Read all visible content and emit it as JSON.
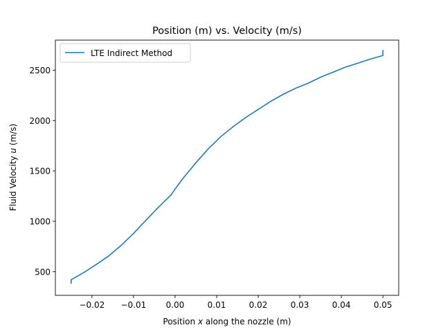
{
  "chart_data": {
    "type": "line",
    "title": "Position (m) vs. Velocity (m/s)",
    "xlabel_parts": [
      "Position ",
      "x",
      " along the nozzle (m)"
    ],
    "ylabel_parts": [
      "Fluid Velocity ",
      "u",
      " (m/s)"
    ],
    "xlim": [
      -0.0288,
      0.0538
    ],
    "ylim": [
      265,
      2798
    ],
    "xticks": [
      -0.02,
      -0.01,
      0.0,
      0.01,
      0.02,
      0.03,
      0.04,
      0.05
    ],
    "xtick_labels": [
      "−0.02",
      "−0.01",
      "0.00",
      "0.01",
      "0.02",
      "0.03",
      "0.04",
      "0.05"
    ],
    "yticks": [
      500,
      1000,
      1500,
      2000,
      2500
    ],
    "ytick_labels": [
      "500",
      "1000",
      "1500",
      "2000",
      "2500"
    ],
    "grid": false,
    "legend_position": "top-left",
    "series": [
      {
        "name": "LTE Indirect Method",
        "color": "#1f77b4",
        "x": [
          -0.025,
          -0.025,
          -0.025,
          -0.022,
          -0.019,
          -0.016,
          -0.013,
          -0.01,
          -0.007,
          -0.004,
          -0.001,
          0.0,
          0.002,
          0.005,
          0.008,
          0.011,
          0.014,
          0.017,
          0.02,
          0.023,
          0.026,
          0.029,
          0.032,
          0.035,
          0.038,
          0.041,
          0.044,
          0.047,
          0.05,
          0.05,
          0.05
        ],
        "y": [
          380,
          410,
          420,
          490,
          570,
          655,
          760,
          880,
          1010,
          1140,
          1260,
          1320,
          1430,
          1580,
          1720,
          1840,
          1940,
          2030,
          2110,
          2190,
          2260,
          2320,
          2370,
          2430,
          2480,
          2530,
          2570,
          2610,
          2645,
          2650,
          2700
        ]
      }
    ]
  }
}
